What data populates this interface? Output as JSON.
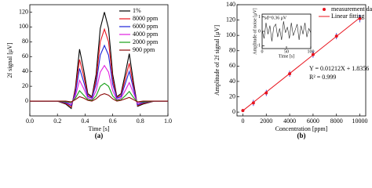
{
  "chart_data": [
    {
      "type": "line",
      "caption": "(a)",
      "xlabel": "Time [s]",
      "ylabel": "2f signal [μV]",
      "x": [
        0.0,
        0.1,
        0.2,
        0.26,
        0.3,
        0.33,
        0.36,
        0.39,
        0.42,
        0.45,
        0.48,
        0.51,
        0.54,
        0.57,
        0.6,
        0.63,
        0.66,
        0.69,
        0.72,
        0.75,
        0.78,
        0.82,
        0.9,
        1.0
      ],
      "xlim": [
        0,
        1
      ],
      "xticks": [
        {
          "value": 0,
          "label": "0.0"
        },
        {
          "value": 0.2,
          "label": "0.2"
        },
        {
          "value": 0.4,
          "label": "0.4"
        },
        {
          "value": 0.6,
          "label": "0.6"
        },
        {
          "value": 0.8,
          "label": "0.8"
        },
        {
          "value": 1,
          "label": "1.0"
        }
      ],
      "ylim": [
        -20,
        130
      ],
      "yticks": [
        0,
        20,
        40,
        60,
        80,
        100,
        120
      ],
      "legend": "upper right",
      "series": [
        {
          "name": "1%",
          "color": "#000000",
          "values": [
            0,
            0,
            0,
            -4,
            -10,
            18,
            70,
            42,
            10,
            6,
            36,
            98,
            120,
            98,
            36,
            6,
            10,
            36,
            64,
            26,
            -7,
            -4,
            0,
            0
          ]
        },
        {
          "name": "8000 ppm",
          "color": "#e8141e",
          "values": [
            0,
            0,
            0,
            -3,
            -8,
            15,
            56,
            34,
            8,
            5,
            29,
            80,
            97,
            80,
            29,
            5,
            8,
            29,
            51,
            21,
            -6,
            -3,
            0,
            0
          ]
        },
        {
          "name": "6000 ppm",
          "color": "#1c22d8",
          "values": [
            0,
            0,
            0,
            -2,
            -6,
            11,
            44,
            26,
            6,
            4,
            23,
            62,
            75,
            62,
            23,
            4,
            6,
            23,
            40,
            17,
            -5,
            -2,
            0,
            0
          ]
        },
        {
          "name": "4000 ppm",
          "color": "#e01ee0",
          "values": [
            0,
            0,
            0,
            -1,
            -4,
            7,
            28,
            17,
            4,
            2,
            14,
            39,
            48,
            39,
            14,
            2,
            4,
            14,
            25,
            11,
            -3,
            -1,
            0,
            0
          ]
        },
        {
          "name": "2000 ppm",
          "color": "#18a018",
          "values": [
            0,
            0,
            0,
            -1,
            -2,
            4,
            14,
            8,
            2,
            1,
            7,
            20,
            24,
            20,
            7,
            1,
            2,
            7,
            13,
            5,
            -1,
            -1,
            0,
            0
          ]
        },
        {
          "name": "900 ppm",
          "color": "#8b0a0a",
          "values": [
            0,
            0,
            0,
            0,
            -1,
            2,
            6,
            4,
            1,
            0,
            3,
            8,
            10,
            8,
            3,
            0,
            1,
            3,
            5,
            2,
            -1,
            0,
            0,
            0
          ]
        }
      ]
    },
    {
      "type": "scatter",
      "caption": "(b)",
      "xlabel": "Concentration [ppm]",
      "ylabel": "Amplitude of 2f signal [μV]",
      "x": [
        0,
        900,
        2000,
        4000,
        6000,
        8000,
        10000
      ],
      "xlim": [
        -500,
        10500
      ],
      "xticks": [
        0,
        2000,
        4000,
        6000,
        8000,
        10000
      ],
      "ylim": [
        -5,
        140
      ],
      "yticks": [
        0,
        20,
        40,
        60,
        80,
        100,
        120,
        140
      ],
      "legend": "upper right",
      "series": [
        {
          "name": "measurement data",
          "color": "#e8141e",
          "values": [
            2,
            12,
            25,
            50,
            75,
            99,
            122
          ],
          "errors": [
            2,
            4,
            4,
            4,
            4,
            4,
            5
          ]
        }
      ],
      "fit": {
        "name": "Linear fitting",
        "color": "#e8141e",
        "slope": 0.01212,
        "intercept": 1.8356,
        "label": "Y = 0.01212X + 1.8356",
        "r2_label": "R² = 0.999"
      }
    },
    {
      "type": "line",
      "xlabel": "Time [s]",
      "ylabel": "Amplitude of noise [μV]",
      "annotation": "sd=0.36 μV",
      "x": [
        0,
        4,
        8,
        12,
        16,
        20,
        24,
        28,
        32,
        36,
        40,
        44,
        48,
        52,
        56,
        60,
        64,
        68,
        72,
        76,
        80,
        84,
        88,
        92,
        96,
        100
      ],
      "xlim": [
        0,
        100
      ],
      "xticks": [
        0,
        50,
        100
      ],
      "ylim": [
        -1.2,
        1.2
      ],
      "yticks": [
        -1,
        0,
        1
      ],
      "series": [
        {
          "color": "#222222",
          "values": [
            0.1,
            -0.5,
            0.6,
            -0.2,
            0.4,
            -0.7,
            0.3,
            0.5,
            -0.4,
            0.2,
            -0.6,
            0.7,
            -0.1,
            0.3,
            -0.5,
            0.6,
            -0.3,
            0.1,
            0.5,
            -0.6,
            0.4,
            -0.2,
            0.6,
            -0.4,
            0.2,
            -0.1
          ]
        }
      ]
    }
  ]
}
